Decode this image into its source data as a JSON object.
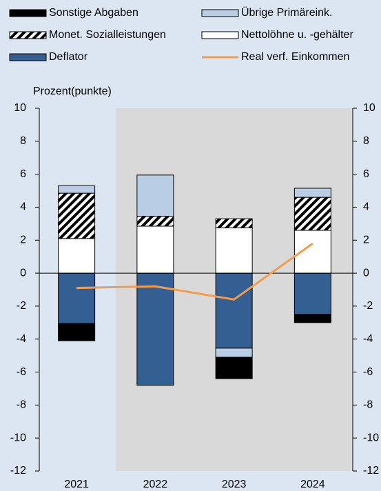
{
  "chart_data": {
    "type": "bar",
    "categories": [
      "2021",
      "2022",
      "2023",
      "2024"
    ],
    "y_label": "Prozent(punkte)",
    "series": [
      {
        "name": "Deflator",
        "color": "#345f92",
        "values": [
          -3.05,
          -6.8,
          -4.55,
          -2.5
        ]
      },
      {
        "name": "Nettolöhne u. -gehälter",
        "color": "#ffffff",
        "values": [
          2.1,
          2.85,
          2.75,
          2.6
        ]
      },
      {
        "name": "Monet. Sozialleistungen",
        "color": "hatch",
        "values": [
          2.75,
          0.6,
          0.55,
          2.0
        ]
      },
      {
        "name": "Übrige Primäreink.",
        "color": "#b9cde5",
        "values": [
          0.45,
          2.5,
          -0.55,
          0.55
        ]
      },
      {
        "name": "Sonstige Abgaben",
        "color": "#000000",
        "values": [
          -1.05,
          0,
          -1.3,
          -0.5
        ]
      },
      {
        "name": "Real verf. Einkommen",
        "color": "#f59b4c",
        "type": "line",
        "values": [
          -0.9,
          -0.8,
          -1.6,
          1.8
        ]
      }
    ],
    "ylim": [
      -12,
      10
    ],
    "yticks": [
      -12,
      -10,
      -8,
      -6,
      -4,
      -2,
      0,
      2,
      4,
      6,
      8,
      10
    ],
    "y2lim": [
      -12,
      10
    ],
    "y2ticks": [
      -12,
      -10,
      -8,
      -6,
      -4,
      -2,
      0,
      2,
      4,
      6,
      8,
      10
    ]
  }
}
